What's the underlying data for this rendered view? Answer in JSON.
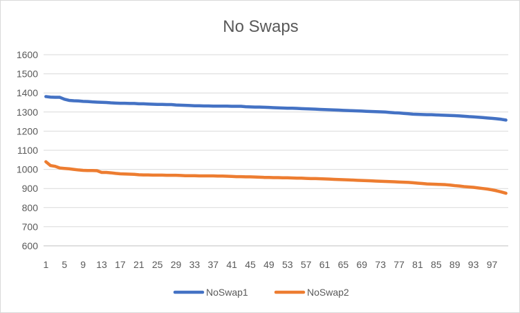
{
  "chart_data": {
    "type": "line",
    "title": "No Swaps",
    "xlabel": "",
    "ylabel": "",
    "ylim": [
      600,
      1600
    ],
    "yticks": [
      600,
      700,
      800,
      900,
      1000,
      1100,
      1200,
      1300,
      1400,
      1500,
      1600
    ],
    "x_tick_labels": [
      "1",
      "5",
      "9",
      "13",
      "17",
      "21",
      "25",
      "29",
      "33",
      "37",
      "41",
      "45",
      "49",
      "53",
      "57",
      "61",
      "65",
      "69",
      "73",
      "77",
      "81",
      "85",
      "89",
      "93",
      "97"
    ],
    "grid": "horizontal",
    "legend": "bottom",
    "x_start": 1,
    "series": [
      {
        "name": "NoSwap1",
        "color": "#4472c4",
        "values": [
          1381,
          1378,
          1377,
          1377,
          1367,
          1361,
          1359,
          1358,
          1356,
          1355,
          1353,
          1352,
          1351,
          1350,
          1348,
          1347,
          1346,
          1346,
          1345,
          1345,
          1343,
          1343,
          1342,
          1341,
          1340,
          1340,
          1339,
          1339,
          1337,
          1336,
          1335,
          1334,
          1333,
          1333,
          1332,
          1332,
          1331,
          1331,
          1331,
          1331,
          1330,
          1330,
          1330,
          1328,
          1327,
          1326,
          1326,
          1325,
          1324,
          1323,
          1322,
          1321,
          1320,
          1320,
          1319,
          1318,
          1317,
          1316,
          1315,
          1314,
          1313,
          1312,
          1311,
          1310,
          1309,
          1308,
          1307,
          1306,
          1305,
          1304,
          1303,
          1302,
          1301,
          1300,
          1298,
          1296,
          1295,
          1293,
          1291,
          1289,
          1288,
          1287,
          1286,
          1286,
          1285,
          1284,
          1283,
          1282,
          1281,
          1280,
          1278,
          1276,
          1275,
          1273,
          1271,
          1269,
          1267,
          1265,
          1262,
          1258
        ]
      },
      {
        "name": "NoSwap2",
        "color": "#ed7d31",
        "values": [
          1040,
          1020,
          1016,
          1007,
          1005,
          1003,
          1000,
          997,
          995,
          994,
          994,
          993,
          984,
          984,
          982,
          979,
          977,
          976,
          975,
          974,
          972,
          971,
          971,
          970,
          970,
          970,
          969,
          969,
          969,
          968,
          967,
          967,
          967,
          966,
          966,
          966,
          966,
          965,
          965,
          964,
          963,
          962,
          962,
          961,
          961,
          960,
          959,
          958,
          958,
          957,
          957,
          956,
          956,
          955,
          954,
          954,
          953,
          952,
          952,
          951,
          950,
          949,
          948,
          947,
          946,
          945,
          944,
          943,
          942,
          941,
          940,
          939,
          938,
          937,
          936,
          935,
          934,
          933,
          932,
          930,
          928,
          926,
          924,
          923,
          922,
          921,
          920,
          918,
          915,
          913,
          910,
          908,
          906,
          903,
          900,
          897,
          893,
          888,
          882,
          875
        ]
      }
    ]
  }
}
